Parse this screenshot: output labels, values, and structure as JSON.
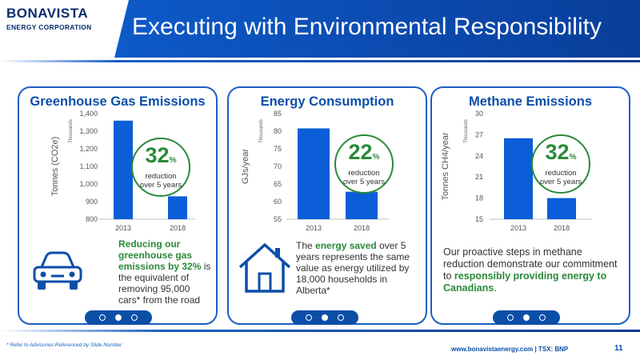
{
  "logo": {
    "main": "BONAVISTA",
    "sub": "ENERGY CORPORATION"
  },
  "header": {
    "title": "Executing with Environmental Responsibility"
  },
  "colors": {
    "bar": "#0b5ed7",
    "accent_green": "#2a8a3a",
    "brand_blue": "#0b4ea8"
  },
  "panels": [
    {
      "title": "Greenhouse Gas Emissions",
      "badge": {
        "pct": "32",
        "unit": "%",
        "line1": "reduction",
        "line2": "over 5 years"
      },
      "desc": {
        "hl": "Reducing our greenhouse gas emissions by 32%",
        "rest": " is the equivalent of removing 95,000 cars* from the road"
      },
      "icon": "car-icon"
    },
    {
      "title": "Energy Consumption",
      "badge": {
        "pct": "22",
        "unit": "%",
        "line1": "reduction",
        "line2": "over 5 years"
      },
      "desc": {
        "pre": "The ",
        "hl": "energy saved",
        "rest": " over 5 years represents the same value as energy utilized by 18,000 households in Alberta*"
      },
      "icon": "house-icon"
    },
    {
      "title": "Methane Emissions",
      "badge": {
        "pct": "32",
        "unit": "%",
        "line1": "reduction",
        "line2": "over 5 years"
      },
      "desc": {
        "pre": "Our proactive steps in methane reduction demonstrate our commitment to ",
        "hl": "responsibly providing energy to Canadians",
        "rest": "."
      }
    }
  ],
  "chart_data": [
    {
      "type": "bar",
      "title": "Greenhouse Gas Emissions",
      "categories": [
        "2013",
        "2018"
      ],
      "values": [
        1360,
        930
      ],
      "ylabel": "Tonnes (CO2e)",
      "yunit": "Thousands",
      "ylim": [
        800,
        1400
      ],
      "yticks": [
        "800",
        "900",
        "1,000",
        "1,100",
        "1,200",
        "1,300",
        "1,400"
      ],
      "ytick_values": [
        800,
        900,
        1000,
        1100,
        1200,
        1300,
        1400
      ]
    },
    {
      "type": "bar",
      "title": "Energy Consumption",
      "categories": [
        "2013",
        "2018"
      ],
      "values": [
        80.8,
        62.8
      ],
      "ylabel": "GJs/year",
      "yunit": "Thousands",
      "ylim": [
        55,
        85
      ],
      "yticks": [
        "55",
        "60",
        "65",
        "70",
        "75",
        "80",
        "85"
      ],
      "ytick_values": [
        55,
        60,
        65,
        70,
        75,
        80,
        85
      ]
    },
    {
      "type": "bar",
      "title": "Methane Emissions",
      "categories": [
        "2013",
        "2018"
      ],
      "values": [
        26.5,
        18.0
      ],
      "ylabel": "Tonnes CH4/year",
      "yunit": "Thousands",
      "ylim": [
        15,
        30
      ],
      "yticks": [
        "15",
        "18",
        "21",
        "24",
        "27",
        "30"
      ],
      "ytick_values": [
        15,
        18,
        21,
        24,
        27,
        30
      ]
    }
  ],
  "footer": {
    "footnote": "* Refer to Advisories Referenced by Slide Number",
    "url": "www.bonavistaenergy.com  |  TSX: BNP",
    "page": "11"
  }
}
